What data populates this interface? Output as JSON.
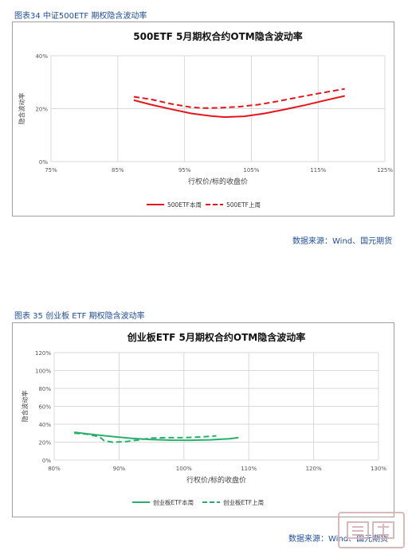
{
  "charts": [
    {
      "caption": "图表34 中证500ETF 期权隐含波动率",
      "source": "数据来源：Wind、国元期货"
    },
    {
      "caption": "图表 35 创业板 ETF 期权隐含波动率",
      "source": "数据来源：Wind、国元期货"
    }
  ],
  "colors": {
    "caption": "#1f4e9a",
    "chart1_series": "#e8141b",
    "chart2_series": "#27b06a",
    "grid": "#d9d9d9"
  },
  "chart_data": [
    {
      "type": "line",
      "title": "500ETF 5月期权合约OTM隐含波动率",
      "xlabel": "行权价/标的收盘价",
      "ylabel": "隐含波动率",
      "xlim": [
        0.75,
        1.25
      ],
      "ylim": [
        0,
        0.4
      ],
      "x_ticks": [
        "75%",
        "85%",
        "95%",
        "105%",
        "115%",
        "125%"
      ],
      "y_ticks": [
        "0%",
        "20%",
        "40%"
      ],
      "x_tick_values": [
        0.75,
        0.85,
        0.95,
        1.05,
        1.15,
        1.25
      ],
      "y_tick_values": [
        0,
        0.2,
        0.4
      ],
      "grid": true,
      "legend_position": "bottom-center",
      "series": [
        {
          "name": "500ETF本周",
          "style": "solid",
          "x": [
            0.874,
            0.9,
            0.93,
            0.96,
            0.99,
            1.01,
            1.04,
            1.07,
            1.1,
            1.13,
            1.16,
            1.19
          ],
          "y": [
            0.232,
            0.215,
            0.198,
            0.182,
            0.172,
            0.168,
            0.171,
            0.182,
            0.197,
            0.213,
            0.231,
            0.248
          ]
        },
        {
          "name": "500ETF上周",
          "style": "dashed",
          "x": [
            0.874,
            0.9,
            0.93,
            0.96,
            0.98,
            1.0,
            1.03,
            1.06,
            1.09,
            1.12,
            1.15,
            1.19
          ],
          "y": [
            0.245,
            0.235,
            0.218,
            0.205,
            0.202,
            0.203,
            0.207,
            0.215,
            0.228,
            0.243,
            0.257,
            0.275
          ]
        }
      ]
    },
    {
      "type": "line",
      "title": "创业板ETF 5月期权合约OTM隐含波动率",
      "xlabel": "行权价/标的收盘价",
      "ylabel": "隐含波动率",
      "xlim": [
        0.8,
        1.3
      ],
      "ylim": [
        0,
        1.2
      ],
      "x_ticks": [
        "80%",
        "90%",
        "100%",
        "110%",
        "120%",
        "130%"
      ],
      "y_ticks": [
        "0%",
        "20%",
        "40%",
        "60%",
        "80%",
        "100%",
        "120%"
      ],
      "x_tick_values": [
        0.8,
        0.9,
        1.0,
        1.1,
        1.2,
        1.3
      ],
      "y_tick_values": [
        0,
        0.2,
        0.4,
        0.6,
        0.8,
        1.0,
        1.2
      ],
      "grid": true,
      "legend_position": "bottom-center",
      "series": [
        {
          "name": "创业板ETF本周",
          "style": "solid",
          "x": [
            0.831,
            0.86,
            0.89,
            0.92,
            0.95,
            0.98,
            1.01,
            1.04,
            1.07,
            1.084
          ],
          "y": [
            0.31,
            0.285,
            0.262,
            0.243,
            0.228,
            0.222,
            0.221,
            0.226,
            0.238,
            0.25
          ]
        },
        {
          "name": "创业板ETF上周",
          "style": "dashed",
          "x": [
            0.831,
            0.85,
            0.87,
            0.877,
            0.89,
            0.91,
            0.93,
            0.95,
            0.97,
            1.0,
            1.03,
            1.05
          ],
          "y": [
            0.3,
            0.29,
            0.26,
            0.215,
            0.2,
            0.205,
            0.225,
            0.245,
            0.25,
            0.25,
            0.26,
            0.27
          ]
        }
      ]
    }
  ]
}
